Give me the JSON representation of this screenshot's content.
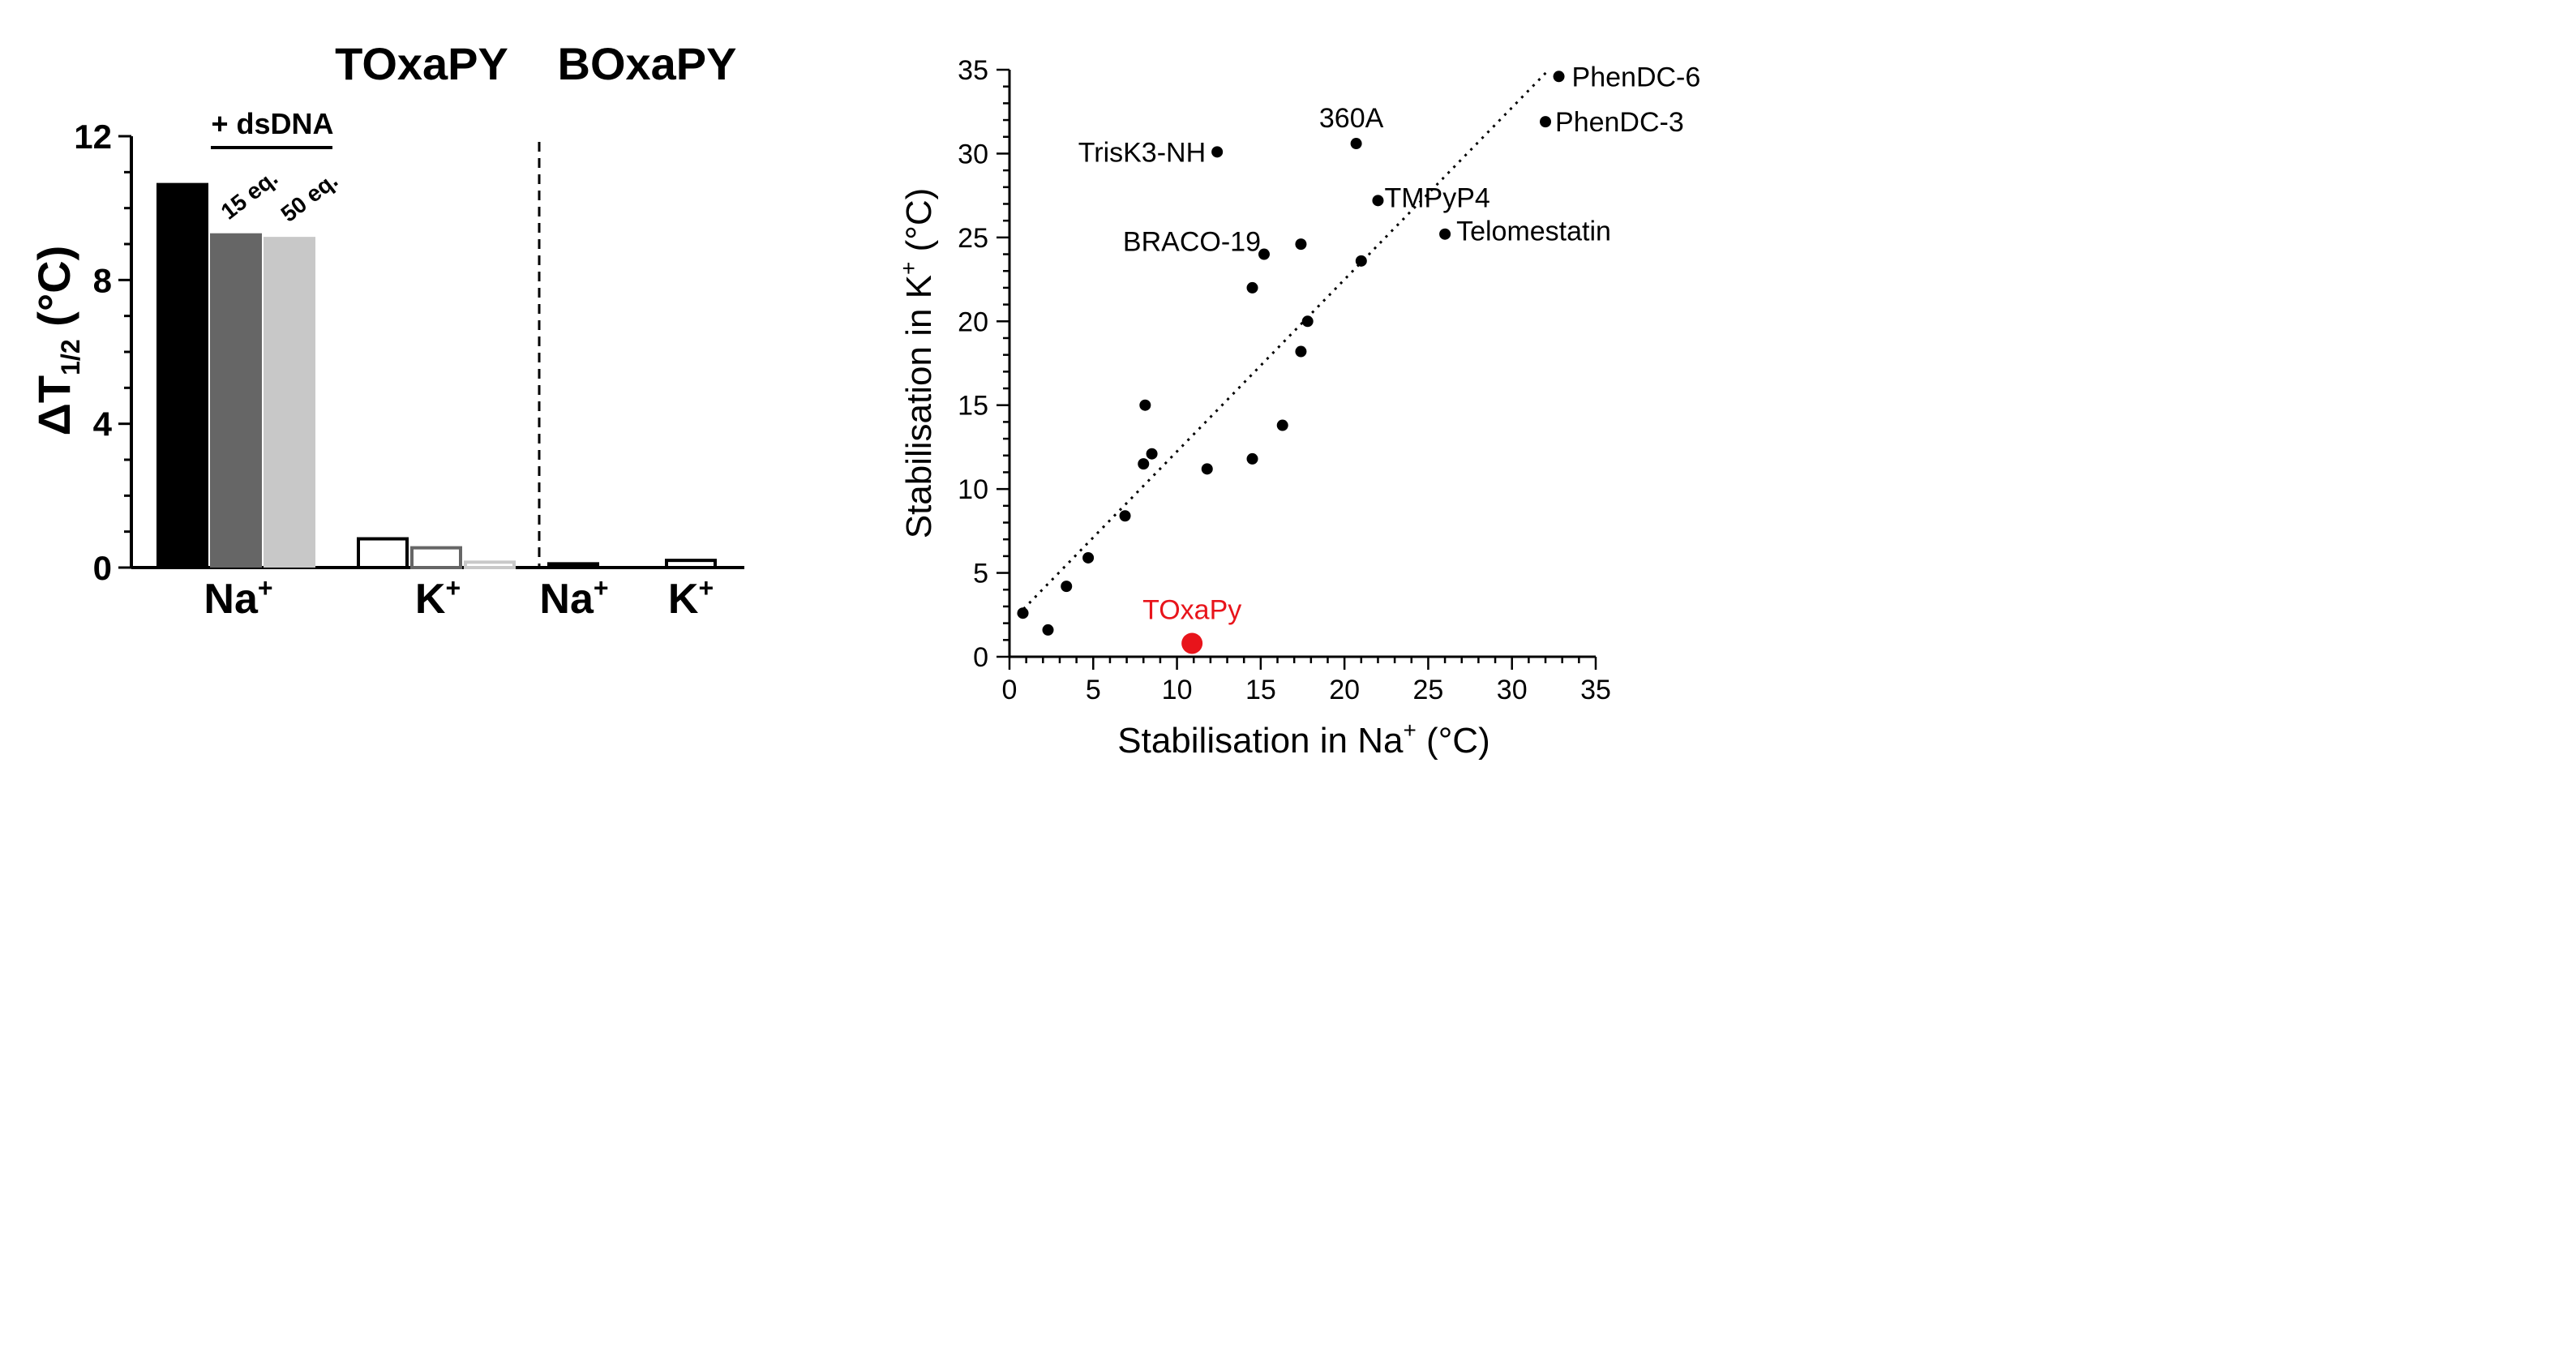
{
  "chart_data": [
    {
      "type": "bar",
      "title": "",
      "group_titles": [
        "TOxaPY",
        "BOxaPY"
      ],
      "ylabel": {
        "main": "ΔT",
        "sub": "1/2",
        "unit": " (°C)"
      },
      "ylim": [
        0,
        12
      ],
      "yticks": [
        {
          "value": 0,
          "label": "0"
        },
        {
          "value": 4,
          "label": "4"
        },
        {
          "value": 8,
          "label": "8"
        },
        {
          "value": 12,
          "label": "12"
        }
      ],
      "y_minor_step": 1,
      "annotation": "+ dsDNA",
      "categories": [
        {
          "label_base": "Na",
          "label_sup": "+"
        },
        {
          "label_base": "K",
          "label_sup": "+"
        },
        {
          "label_base": "Na",
          "label_sup": "+"
        },
        {
          "label_base": "K",
          "label_sup": "+"
        }
      ],
      "series": [
        {
          "label": "",
          "color": "#000000",
          "style": "filled",
          "values": [
            10.7,
            0.8,
            0.15,
            0.2
          ]
        },
        {
          "label": "15 eq.",
          "color": "#666666",
          "style": "filled",
          "values": [
            9.3,
            0.55,
            null,
            null
          ]
        },
        {
          "label": "50 eq.",
          "color": "#c8c8c8",
          "style": "filled",
          "values": [
            9.2,
            0.15,
            null,
            null
          ]
        }
      ],
      "grid": false
    },
    {
      "type": "scatter",
      "title": "",
      "xlabel": {
        "main": "Stabilisation in Na",
        "sup": "+",
        "unit": " (°C)"
      },
      "ylabel": {
        "main": "Stabilisation in K",
        "sup": "+",
        "unit": " (°C)"
      },
      "xlim": [
        0,
        35
      ],
      "ylim": [
        0,
        35
      ],
      "ticks": [
        0,
        5,
        10,
        15,
        20,
        25,
        30,
        35
      ],
      "minor_step": 1,
      "grid": false,
      "trendline": {
        "style": "dotted",
        "from": [
          0.5,
          2.5
        ],
        "to": [
          32.2,
          35
        ]
      },
      "points": [
        {
          "x": 0.8,
          "y": 2.6,
          "label": ""
        },
        {
          "x": 2.3,
          "y": 1.6,
          "label": ""
        },
        {
          "x": 3.4,
          "y": 4.2,
          "label": ""
        },
        {
          "x": 4.7,
          "y": 5.9,
          "label": ""
        },
        {
          "x": 6.9,
          "y": 8.4,
          "label": ""
        },
        {
          "x": 8.0,
          "y": 11.5,
          "label": ""
        },
        {
          "x": 8.1,
          "y": 15.0,
          "label": ""
        },
        {
          "x": 8.5,
          "y": 12.1,
          "label": ""
        },
        {
          "x": 11.8,
          "y": 11.2,
          "label": ""
        },
        {
          "x": 12.4,
          "y": 30.1,
          "label": "TrisK3-NH"
        },
        {
          "x": 14.5,
          "y": 11.8,
          "label": ""
        },
        {
          "x": 14.5,
          "y": 22.0,
          "label": ""
        },
        {
          "x": 15.2,
          "y": 24.0,
          "label": "BRACO-19"
        },
        {
          "x": 16.3,
          "y": 13.8,
          "label": ""
        },
        {
          "x": 17.4,
          "y": 18.2,
          "label": ""
        },
        {
          "x": 17.4,
          "y": 24.6,
          "label": ""
        },
        {
          "x": 17.8,
          "y": 20.0,
          "label": ""
        },
        {
          "x": 20.7,
          "y": 30.6,
          "label": "360A"
        },
        {
          "x": 21.0,
          "y": 23.6,
          "label": ""
        },
        {
          "x": 22.0,
          "y": 27.2,
          "label": "TMPyP4"
        },
        {
          "x": 26.0,
          "y": 25.2,
          "label": "Telomestatin"
        },
        {
          "x": 32.0,
          "y": 31.9,
          "label": "PhenDC-3"
        },
        {
          "x": 32.8,
          "y": 34.6,
          "label": "PhenDC-6"
        }
      ],
      "highlight": {
        "x": 10.9,
        "y": 0.8,
        "label": "TOxaPy",
        "color": "#e8141b"
      }
    }
  ]
}
